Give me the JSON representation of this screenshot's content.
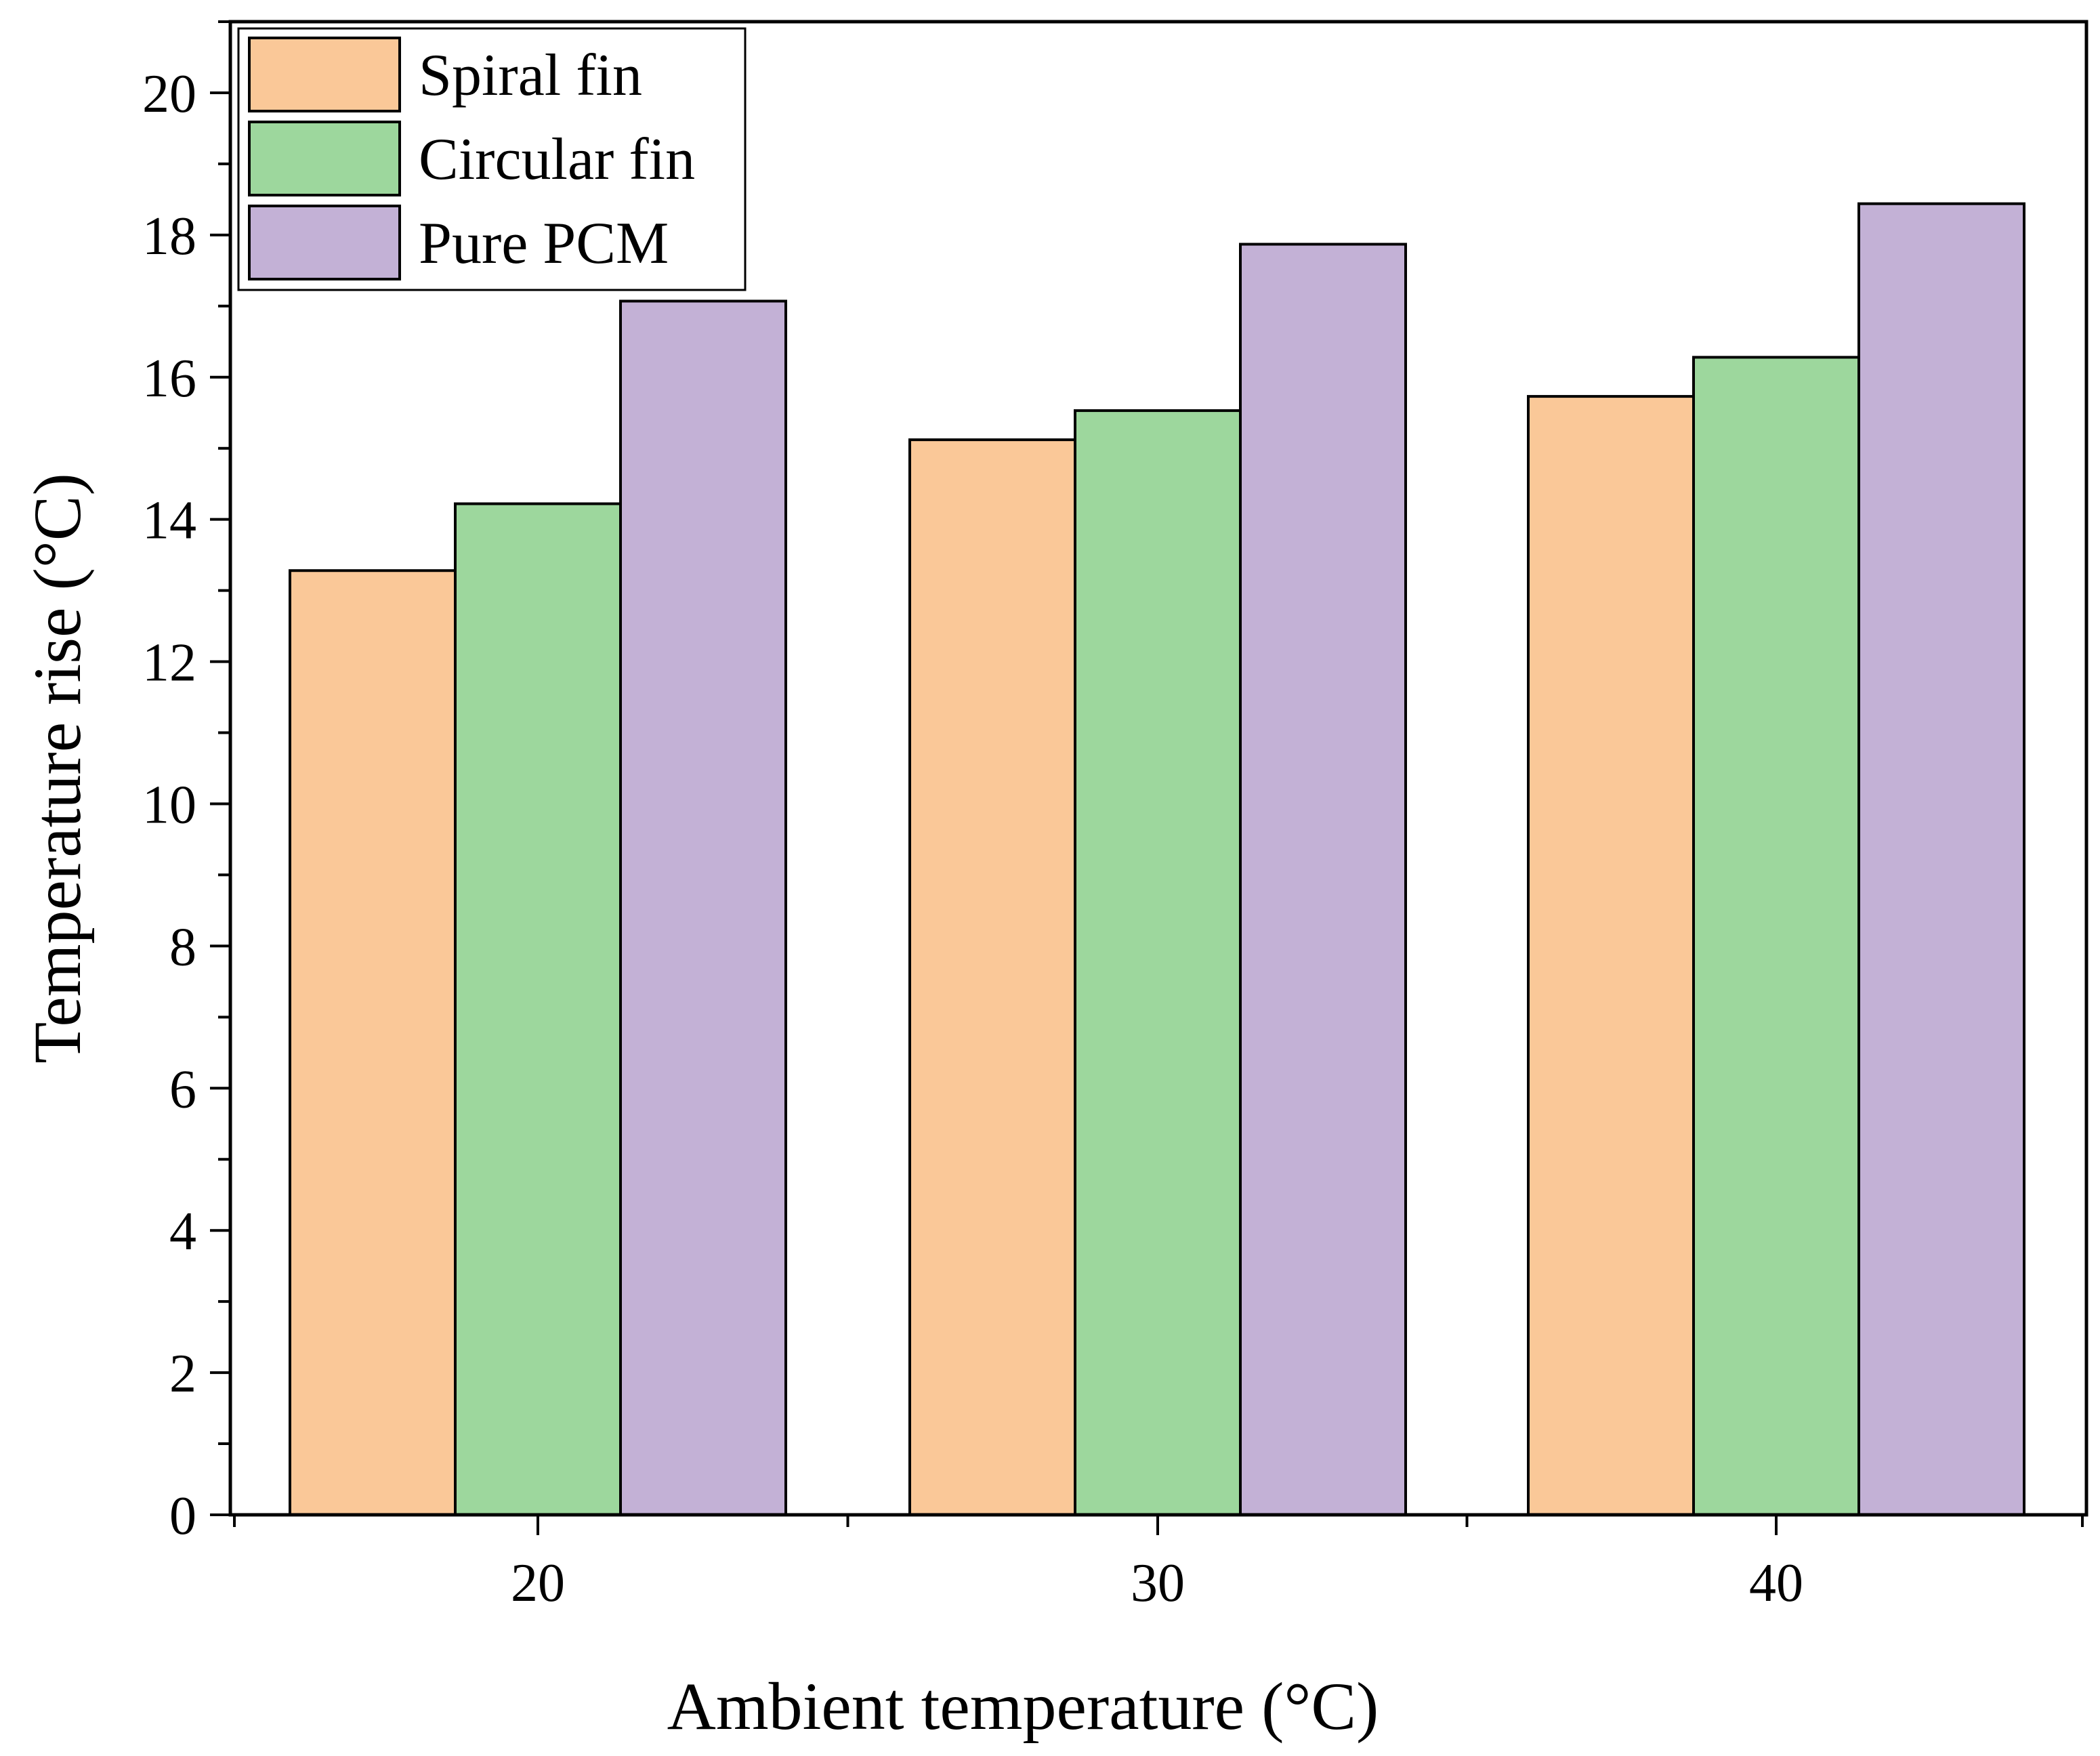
{
  "chart_data": {
    "type": "bar",
    "title": "",
    "xlabel": "Ambient temperature (°C)",
    "ylabel": "Temperature rise (°C)",
    "categories": [
      "20",
      "30",
      "40"
    ],
    "series": [
      {
        "name": "Spiral fin",
        "color": "#FAC898",
        "values": [
          13.28,
          15.12,
          15.73
        ]
      },
      {
        "name": "Circular fin",
        "color": "#9DD79D",
        "values": [
          14.22,
          15.53,
          16.28
        ]
      },
      {
        "name": "Pure PCM",
        "color": "#C3B1D6",
        "values": [
          17.07,
          17.87,
          18.44
        ]
      }
    ],
    "ylim": [
      0,
      21
    ],
    "yticks": [
      "0",
      "2",
      "4",
      "6",
      "8",
      "10",
      "12",
      "14",
      "16",
      "18",
      "20"
    ],
    "grid": false,
    "legend_position": "top-left"
  }
}
